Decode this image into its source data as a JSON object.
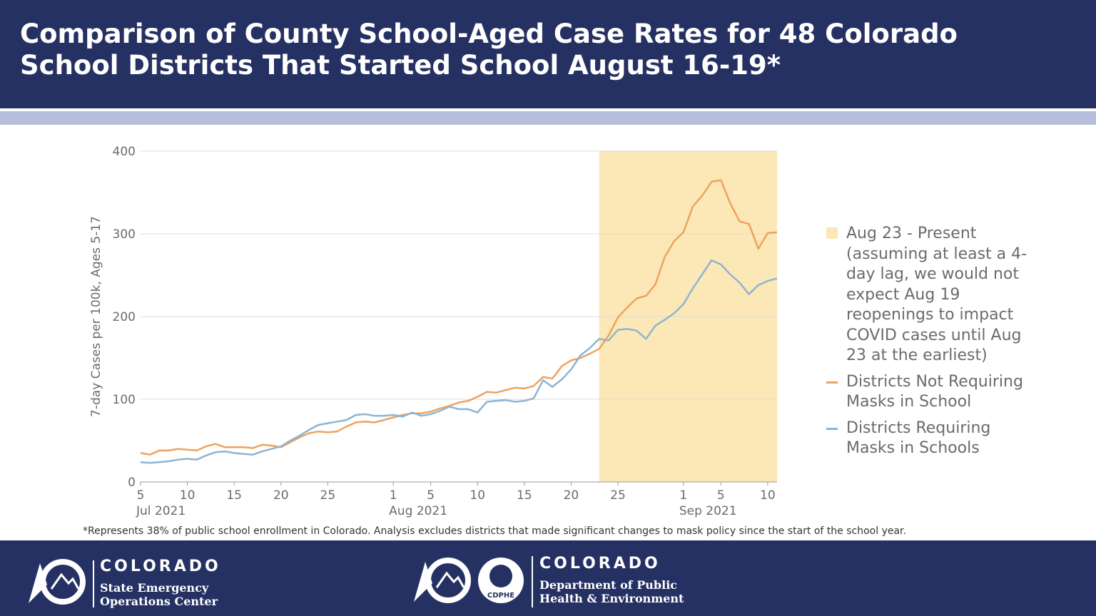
{
  "chart_data": {
    "type": "line",
    "title": "Comparison of County School-Aged Case Rates for 48 Colorado School Districts That Started School August 16-19*",
    "y_label": "7-day Cases per 100k, Ages 5-17",
    "note": "*Represents 38% of public school enrollment in Colorado. Analysis excludes districts that made significant changes to mask policy since the start of the school year.",
    "x": [
      "2021-07-05",
      "2021-07-06",
      "2021-07-07",
      "2021-07-08",
      "2021-07-09",
      "2021-07-10",
      "2021-07-11",
      "2021-07-12",
      "2021-07-13",
      "2021-07-14",
      "2021-07-15",
      "2021-07-16",
      "2021-07-17",
      "2021-07-18",
      "2021-07-19",
      "2021-07-20",
      "2021-07-21",
      "2021-07-22",
      "2021-07-23",
      "2021-07-24",
      "2021-07-25",
      "2021-07-26",
      "2021-07-27",
      "2021-07-28",
      "2021-07-29",
      "2021-07-30",
      "2021-07-31",
      "2021-08-01",
      "2021-08-02",
      "2021-08-03",
      "2021-08-04",
      "2021-08-05",
      "2021-08-06",
      "2021-08-07",
      "2021-08-08",
      "2021-08-09",
      "2021-08-10",
      "2021-08-11",
      "2021-08-12",
      "2021-08-13",
      "2021-08-14",
      "2021-08-15",
      "2021-08-16",
      "2021-08-17",
      "2021-08-18",
      "2021-08-19",
      "2021-08-20",
      "2021-08-21",
      "2021-08-22",
      "2021-08-23",
      "2021-08-24",
      "2021-08-25",
      "2021-08-26",
      "2021-08-27",
      "2021-08-28",
      "2021-08-29",
      "2021-08-30",
      "2021-08-31",
      "2021-09-01",
      "2021-09-02",
      "2021-09-03",
      "2021-09-04",
      "2021-09-05",
      "2021-09-06",
      "2021-09-07",
      "2021-09-08",
      "2021-09-09",
      "2021-09-10",
      "2021-09-11"
    ],
    "series": [
      {
        "name": "Districts Not Requiring Masks in School",
        "color": "#efa25e",
        "values": [
          35,
          33,
          38,
          38,
          40,
          39,
          38,
          43,
          46,
          42,
          42,
          42,
          41,
          45,
          44,
          42,
          48,
          54,
          59,
          61,
          60,
          61,
          67,
          72,
          73,
          72,
          75,
          78,
          81,
          83,
          83,
          85,
          89,
          92,
          96,
          98,
          103,
          109,
          108,
          111,
          114,
          113,
          116,
          127,
          125,
          140,
          147,
          150,
          155,
          161,
          177,
          199,
          211,
          222,
          225,
          239,
          272,
          291,
          302,
          333,
          346,
          363,
          365,
          337,
          315,
          312,
          282,
          301,
          302
        ]
      },
      {
        "name": "Districts Requiring Masks in Schools",
        "color": "#8eb4d2",
        "values": [
          24,
          23,
          24,
          25,
          27,
          28,
          27,
          32,
          36,
          37,
          35,
          34,
          33,
          37,
          40,
          43,
          50,
          56,
          63,
          69,
          71,
          73,
          75,
          81,
          82,
          80,
          80,
          81,
          79,
          84,
          80,
          82,
          86,
          91,
          88,
          88,
          84,
          97,
          98,
          99,
          97,
          98,
          101,
          123,
          115,
          124,
          136,
          153,
          162,
          173,
          171,
          184,
          185,
          183,
          173,
          189,
          196,
          204,
          215,
          234,
          251,
          268,
          263,
          251,
          241,
          227,
          238,
          243,
          246
        ]
      }
    ],
    "highlight": {
      "start": "2021-08-23",
      "end": "2021-09-11",
      "color": "#fce8b6",
      "label": "Aug 23 - Present (assuming at least a 4-day lag, we would not expect Aug 19 reopenings to impact COVID cases until Aug 23 at the earliest)"
    },
    "xlim": [
      "2021-07-05",
      "2021-09-11"
    ],
    "xticks": [
      {
        "value": "2021-07-05",
        "label": "5"
      },
      {
        "value": "2021-07-10",
        "label": "10"
      },
      {
        "value": "2021-07-15",
        "label": "15"
      },
      {
        "value": "2021-07-20",
        "label": "20"
      },
      {
        "value": "2021-07-25",
        "label": "25"
      },
      {
        "value": "2021-08-01",
        "label": "1"
      },
      {
        "value": "2021-08-05",
        "label": "5"
      },
      {
        "value": "2021-08-10",
        "label": "10"
      },
      {
        "value": "2021-08-15",
        "label": "15"
      },
      {
        "value": "2021-08-20",
        "label": "20"
      },
      {
        "value": "2021-08-25",
        "label": "25"
      },
      {
        "value": "2021-09-01",
        "label": "1"
      },
      {
        "value": "2021-09-05",
        "label": "5"
      },
      {
        "value": "2021-09-10",
        "label": "10"
      }
    ],
    "month_ticks": [
      {
        "value": "2021-07-05",
        "label": "Jul 2021"
      },
      {
        "value": "2021-08-01",
        "label": "Aug 2021"
      },
      {
        "value": "2021-09-01",
        "label": "Sep 2021"
      }
    ],
    "ylim": [
      0,
      400
    ],
    "yticks": [
      0,
      100,
      200,
      300,
      400
    ],
    "grid": true
  },
  "footer": {
    "left": {
      "name": "COLORADO",
      "sub": "State Emergency Operations Center"
    },
    "right": {
      "badge": "CDPHE",
      "name": "COLORADO",
      "sub": "Department of Public Health & Environment"
    }
  }
}
